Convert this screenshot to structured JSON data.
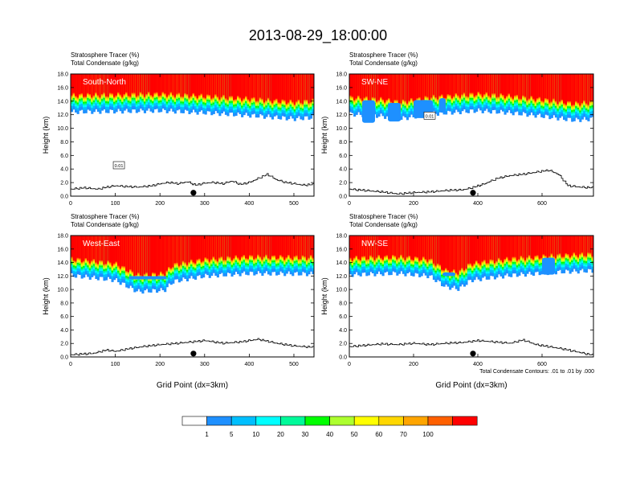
{
  "figure": {
    "title": "2013-08-29_18:00:00",
    "footnote": "Total Condensate Contours: .01 to .01 by .000"
  },
  "colorbar": {
    "labels": [
      "1",
      "5",
      "10",
      "20",
      "30",
      "40",
      "50",
      "60",
      "70",
      "100"
    ],
    "colors": [
      "#ffffff",
      "#1e90ff",
      "#00bfff",
      "#00ffff",
      "#00fa9a",
      "#00ff00",
      "#adff2f",
      "#ffff00",
      "#ffd700",
      "#ffa500",
      "#ff6000",
      "#ff0000"
    ]
  },
  "chart_data": [
    {
      "type": "heatmap",
      "label": "South-North",
      "subtitle1": "Stratosphere Tracer   (%)",
      "subtitle2": "Total Condensate   (g/kg)",
      "ylabel": "Height (km)",
      "xlabel": "",
      "xlim": [
        0,
        545
      ],
      "ylim": [
        0,
        18
      ],
      "xticks": [
        0,
        100,
        200,
        300,
        400,
        500
      ],
      "yticks": [
        "0.0",
        "2.0",
        "4.0",
        "6.0",
        "8.0",
        "10.0",
        "12.0",
        "14.0",
        "16.0",
        "18.0"
      ],
      "tropopause_km": [
        [
          0,
          14.6
        ],
        [
          100,
          14.7
        ],
        [
          200,
          14.8
        ],
        [
          300,
          14.5
        ],
        [
          400,
          14.1
        ],
        [
          500,
          13.6
        ],
        [
          545,
          13.8
        ]
      ],
      "blue_tongues": [],
      "contour_label": "0.01",
      "terrain": [
        [
          0,
          1.0
        ],
        [
          30,
          1.2
        ],
        [
          60,
          1.0
        ],
        [
          80,
          1.3
        ],
        [
          100,
          1.5
        ],
        [
          120,
          1.4
        ],
        [
          150,
          1.3
        ],
        [
          180,
          1.5
        ],
        [
          200,
          1.8
        ],
        [
          220,
          2.0
        ],
        [
          240,
          1.8
        ],
        [
          260,
          2.1
        ],
        [
          280,
          1.6
        ],
        [
          300,
          1.9
        ],
        [
          320,
          2.0
        ],
        [
          340,
          1.8
        ],
        [
          360,
          2.2
        ],
        [
          380,
          1.7
        ],
        [
          400,
          2.0
        ],
        [
          420,
          2.6
        ],
        [
          440,
          3.2
        ],
        [
          460,
          2.4
        ],
        [
          480,
          2.0
        ],
        [
          500,
          1.8
        ],
        [
          520,
          1.6
        ],
        [
          545,
          1.7
        ]
      ],
      "marker_x": 275
    },
    {
      "type": "heatmap",
      "label": "SW-NE",
      "subtitle1": "Stratosphere Tracer   (%)",
      "subtitle2": "Total Condensate   (g/kg)",
      "ylabel": "Height (km)",
      "xlabel": "",
      "xlim": [
        0,
        760
      ],
      "ylim": [
        0,
        18
      ],
      "xticks": [
        0,
        200,
        400,
        600
      ],
      "yticks": [
        "0.0",
        "2.0",
        "4.0",
        "6.0",
        "8.0",
        "10.0",
        "12.0",
        "14.0",
        "16.0",
        "18.0"
      ],
      "tropopause_km": [
        [
          0,
          14.3
        ],
        [
          100,
          14.0
        ],
        [
          160,
          13.6
        ],
        [
          250,
          14.3
        ],
        [
          400,
          14.8
        ],
        [
          500,
          14.5
        ],
        [
          600,
          14.0
        ],
        [
          700,
          13.4
        ],
        [
          760,
          13.6
        ]
      ],
      "blue_tongues": [
        [
          40,
          80,
          10.8
        ],
        [
          120,
          160,
          11.0
        ],
        [
          200,
          260,
          11.5
        ],
        [
          280,
          300,
          12.3
        ]
      ],
      "contour_label": "0.01",
      "terrain": [
        [
          0,
          1.0
        ],
        [
          50,
          0.8
        ],
        [
          100,
          0.6
        ],
        [
          150,
          0.3
        ],
        [
          200,
          0.5
        ],
        [
          250,
          0.6
        ],
        [
          300,
          0.8
        ],
        [
          350,
          0.9
        ],
        [
          380,
          1.2
        ],
        [
          420,
          1.8
        ],
        [
          460,
          2.6
        ],
        [
          500,
          3.0
        ],
        [
          540,
          3.2
        ],
        [
          580,
          3.5
        ],
        [
          620,
          3.8
        ],
        [
          650,
          3.2
        ],
        [
          680,
          1.5
        ],
        [
          720,
          1.3
        ],
        [
          760,
          1.2
        ]
      ],
      "marker_x": 385
    },
    {
      "type": "heatmap",
      "label": "West-East",
      "subtitle1": "Stratosphere Tracer   (%)",
      "subtitle2": "Total Condensate   (g/kg)",
      "ylabel": "Height (km)",
      "xlabel": "Grid Point (dx=3km)",
      "xlim": [
        0,
        545
      ],
      "ylim": [
        0,
        18
      ],
      "xticks": [
        0,
        100,
        200,
        300,
        400,
        500
      ],
      "yticks": [
        "0.0",
        "2.0",
        "4.0",
        "6.0",
        "8.0",
        "10.0",
        "12.0",
        "14.0",
        "16.0",
        "18.0"
      ],
      "tropopause_km": [
        [
          0,
          14.3
        ],
        [
          100,
          13.6
        ],
        [
          150,
          11.9
        ],
        [
          210,
          12.1
        ],
        [
          230,
          13.4
        ],
        [
          300,
          14.2
        ],
        [
          400,
          14.6
        ],
        [
          545,
          14.5
        ]
      ],
      "blue_tongues": [
        [
          130,
          215,
          11.5
        ]
      ],
      "contour_label": "",
      "terrain": [
        [
          0,
          0.3
        ],
        [
          50,
          0.5
        ],
        [
          80,
          1.0
        ],
        [
          100,
          0.8
        ],
        [
          130,
          1.2
        ],
        [
          160,
          1.5
        ],
        [
          200,
          1.8
        ],
        [
          240,
          2.0
        ],
        [
          270,
          2.2
        ],
        [
          300,
          2.4
        ],
        [
          340,
          2.0
        ],
        [
          380,
          2.2
        ],
        [
          420,
          2.6
        ],
        [
          460,
          2.0
        ],
        [
          500,
          1.6
        ],
        [
          545,
          1.4
        ]
      ],
      "marker_x": 275
    },
    {
      "type": "heatmap",
      "label": "NW-SE",
      "subtitle1": "Stratosphere Tracer   (%)",
      "subtitle2": "Total Condensate   (g/kg)",
      "ylabel": "Height (km)",
      "xlabel": "Grid Point (dx=3km)",
      "xlim": [
        0,
        760
      ],
      "ylim": [
        0,
        18
      ],
      "xticks": [
        0,
        200,
        400,
        600
      ],
      "yticks": [
        "0.0",
        "2.0",
        "4.0",
        "6.0",
        "8.0",
        "10.0",
        "12.0",
        "14.0",
        "16.0",
        "18.0"
      ],
      "tropopause_km": [
        [
          0,
          14.4
        ],
        [
          150,
          14.6
        ],
        [
          250,
          14.2
        ],
        [
          300,
          12.6
        ],
        [
          340,
          12.3
        ],
        [
          380,
          13.6
        ],
        [
          500,
          14.3
        ],
        [
          650,
          14.8
        ],
        [
          760,
          15.0
        ]
      ],
      "blue_tongues": [
        [
          290,
          330,
          12.0
        ],
        [
          600,
          640,
          12.2
        ]
      ],
      "contour_label": "",
      "terrain": [
        [
          0,
          1.5
        ],
        [
          50,
          1.7
        ],
        [
          100,
          1.9
        ],
        [
          150,
          1.8
        ],
        [
          200,
          2.0
        ],
        [
          250,
          1.8
        ],
        [
          300,
          2.0
        ],
        [
          350,
          2.1
        ],
        [
          400,
          2.4
        ],
        [
          450,
          2.2
        ],
        [
          500,
          2.0
        ],
        [
          540,
          2.5
        ],
        [
          580,
          1.8
        ],
        [
          620,
          1.5
        ],
        [
          660,
          1.2
        ],
        [
          700,
          0.8
        ],
        [
          740,
          0.4
        ],
        [
          760,
          0.2
        ]
      ],
      "marker_x": 385
    }
  ]
}
